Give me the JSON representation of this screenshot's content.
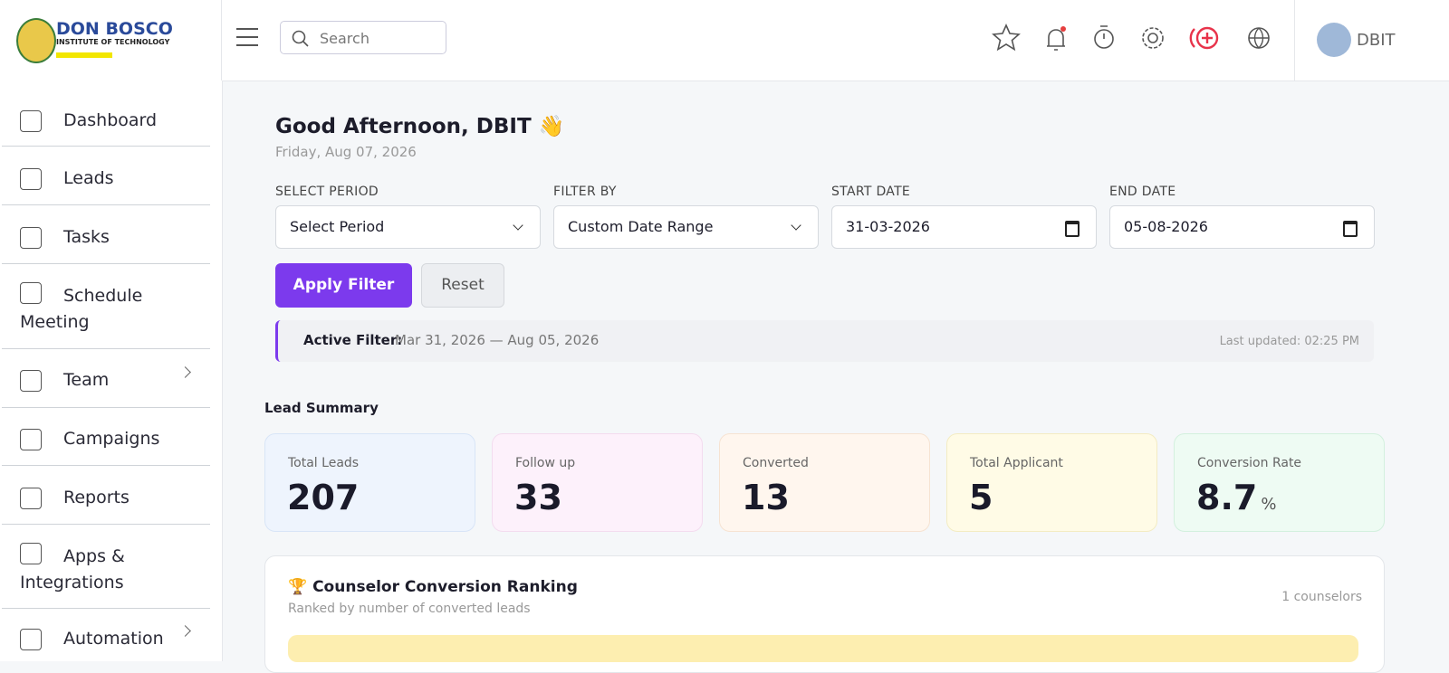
{
  "header": {
    "logo_title": "DON BOSCO",
    "logo_subtitle": "INSTITUTE OF TECHNOLOGY",
    "search_placeholder": "Search",
    "user": "DBIT"
  },
  "sidebar": {
    "items": [
      "Dashboard",
      "Leads",
      "Tasks",
      "Schedule Meeting",
      "Team",
      "Campaigns",
      "Reports",
      "Apps & Integrations",
      "Automation"
    ]
  },
  "greeting": {
    "title": "Good Afternoon, DBIT 👋",
    "date": "Friday, Aug 07, 2026"
  },
  "filters": {
    "fields": [
      {
        "label": "SELECT PERIOD",
        "value": "Select Period"
      },
      {
        "label": "FILTER BY",
        "value": "Custom Date Range"
      },
      {
        "label": "START DATE",
        "value": "31-03-2026"
      },
      {
        "label": "END DATE",
        "value": "05-08-2026"
      }
    ],
    "apply": "Apply Filter",
    "reset": "Reset",
    "active_label": "Active Filter:",
    "active_range": "Mar 31, 2026 — Aug 05, 2026",
    "last_updated": "Last updated: 02:25 PM"
  },
  "summary": {
    "title": "Lead Summary",
    "cards": [
      {
        "label": "Total Leads",
        "value": "207"
      },
      {
        "label": "Follow up",
        "value": "33"
      },
      {
        "label": "Converted",
        "value": "13"
      },
      {
        "label": "Total Applicant",
        "value": "5"
      },
      {
        "label": "Conversion Rate",
        "value": "8.7",
        "unit": "%"
      }
    ]
  },
  "ranking": {
    "title": "🏆 Counselor Conversion Ranking",
    "subtitle": "Ranked by number of converted leads",
    "count": "1 counselors"
  }
}
